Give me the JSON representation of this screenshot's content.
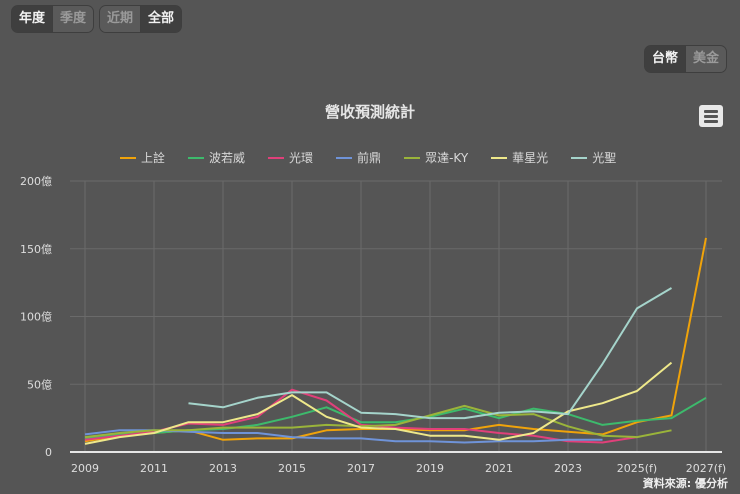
{
  "period_tabs": [
    {
      "label": "年度",
      "active": true
    },
    {
      "label": "季度",
      "active": false
    }
  ],
  "range_tabs": [
    {
      "label": "近期",
      "active": false
    },
    {
      "label": "全部",
      "active": true
    }
  ],
  "currency_tabs": [
    {
      "label": "台幣",
      "active": true
    },
    {
      "label": "美金",
      "active": false
    }
  ],
  "menu_icon": "hamburger-menu-icon",
  "source": "資料來源: 優分析",
  "chart_data": {
    "type": "line",
    "title": "營收預測統計",
    "xlabel": "",
    "ylabel": "",
    "ylim": [
      0,
      200
    ],
    "y_ticks": [
      "0",
      "50億",
      "100億",
      "150億",
      "200億"
    ],
    "y_tick_values": [
      0,
      50,
      100,
      150,
      200
    ],
    "x_ticks": [
      "2009",
      "2011",
      "2013",
      "2015",
      "2017",
      "2019",
      "2021",
      "2023",
      "2025(f)",
      "2027(f)"
    ],
    "x": [
      "2009",
      "2010",
      "2011",
      "2012",
      "2013",
      "2014",
      "2015",
      "2016",
      "2017",
      "2018",
      "2019",
      "2020",
      "2021",
      "2022",
      "2023",
      "2024",
      "2025(f)",
      "2026(f)",
      "2027(f)"
    ],
    "grid": true,
    "legend_position": "top",
    "series": [
      {
        "name": "上詮",
        "color": "#f0a30a",
        "values": [
          8,
          12,
          14,
          16,
          9,
          10,
          10,
          16,
          17,
          17,
          16,
          16,
          20,
          17,
          15,
          13,
          22,
          27,
          158
        ]
      },
      {
        "name": "波若威",
        "color": "#3dba6c",
        "values": [
          10,
          13,
          14,
          16,
          17,
          20,
          26,
          33,
          22,
          22,
          26,
          32,
          25,
          32,
          28,
          20,
          23,
          25,
          40
        ]
      },
      {
        "name": "光環",
        "color": "#e0407a",
        "values": [
          9,
          12,
          15,
          21,
          20,
          26,
          46,
          38,
          20,
          18,
          17,
          17,
          14,
          12,
          8,
          7,
          11,
          null,
          null
        ]
      },
      {
        "name": "前鼎",
        "color": "#6f93d8",
        "values": [
          13,
          16,
          16,
          15,
          14,
          14,
          11,
          10,
          10,
          8,
          8,
          7,
          8,
          8,
          9,
          9,
          null,
          null,
          null
        ]
      },
      {
        "name": "眾達-KY",
        "color": "#9ab43a",
        "values": [
          11,
          14,
          16,
          16,
          18,
          18,
          18,
          20,
          19,
          20,
          27,
          34,
          27,
          28,
          19,
          12,
          11,
          16,
          null
        ]
      },
      {
        "name": "華星光",
        "color": "#eee88a",
        "values": [
          6,
          11,
          14,
          22,
          22,
          28,
          42,
          26,
          18,
          17,
          12,
          12,
          9,
          14,
          30,
          36,
          45,
          66,
          null
        ]
      },
      {
        "name": "光聖",
        "color": "#a5d4cb",
        "values": [
          null,
          null,
          null,
          36,
          33,
          40,
          44,
          44,
          29,
          28,
          25,
          25,
          29,
          30,
          28,
          65,
          106,
          121,
          null
        ]
      }
    ]
  }
}
